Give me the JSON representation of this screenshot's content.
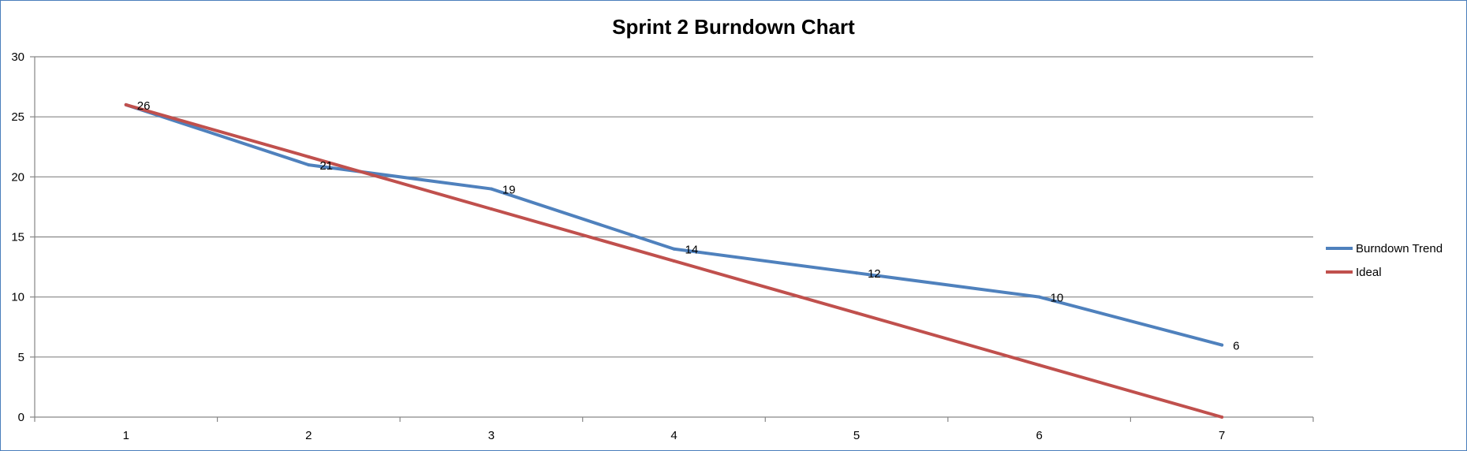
{
  "chart_data": {
    "type": "line",
    "title": "Sprint 2 Burndown Chart",
    "xlabel": "",
    "ylabel": "",
    "categories": [
      "1",
      "2",
      "3",
      "4",
      "5",
      "6",
      "7"
    ],
    "x": [
      1,
      2,
      3,
      4,
      5,
      6,
      7
    ],
    "ylim": [
      0,
      30
    ],
    "y_ticks": [
      "0",
      "5",
      "10",
      "15",
      "20",
      "25",
      "30"
    ],
    "grid": true,
    "legend_position": "right",
    "series": [
      {
        "name": "Burndown Trend",
        "color": "#4f81bd",
        "values": [
          26,
          21,
          19,
          14,
          12,
          10,
          6
        ],
        "data_labels": [
          "26",
          "21",
          "19",
          "14",
          "12",
          "10",
          "6"
        ]
      },
      {
        "name": "Ideal",
        "color": "#c0504d",
        "values": [
          26,
          21.67,
          17.33,
          13,
          8.67,
          4.33,
          0
        ]
      }
    ]
  }
}
